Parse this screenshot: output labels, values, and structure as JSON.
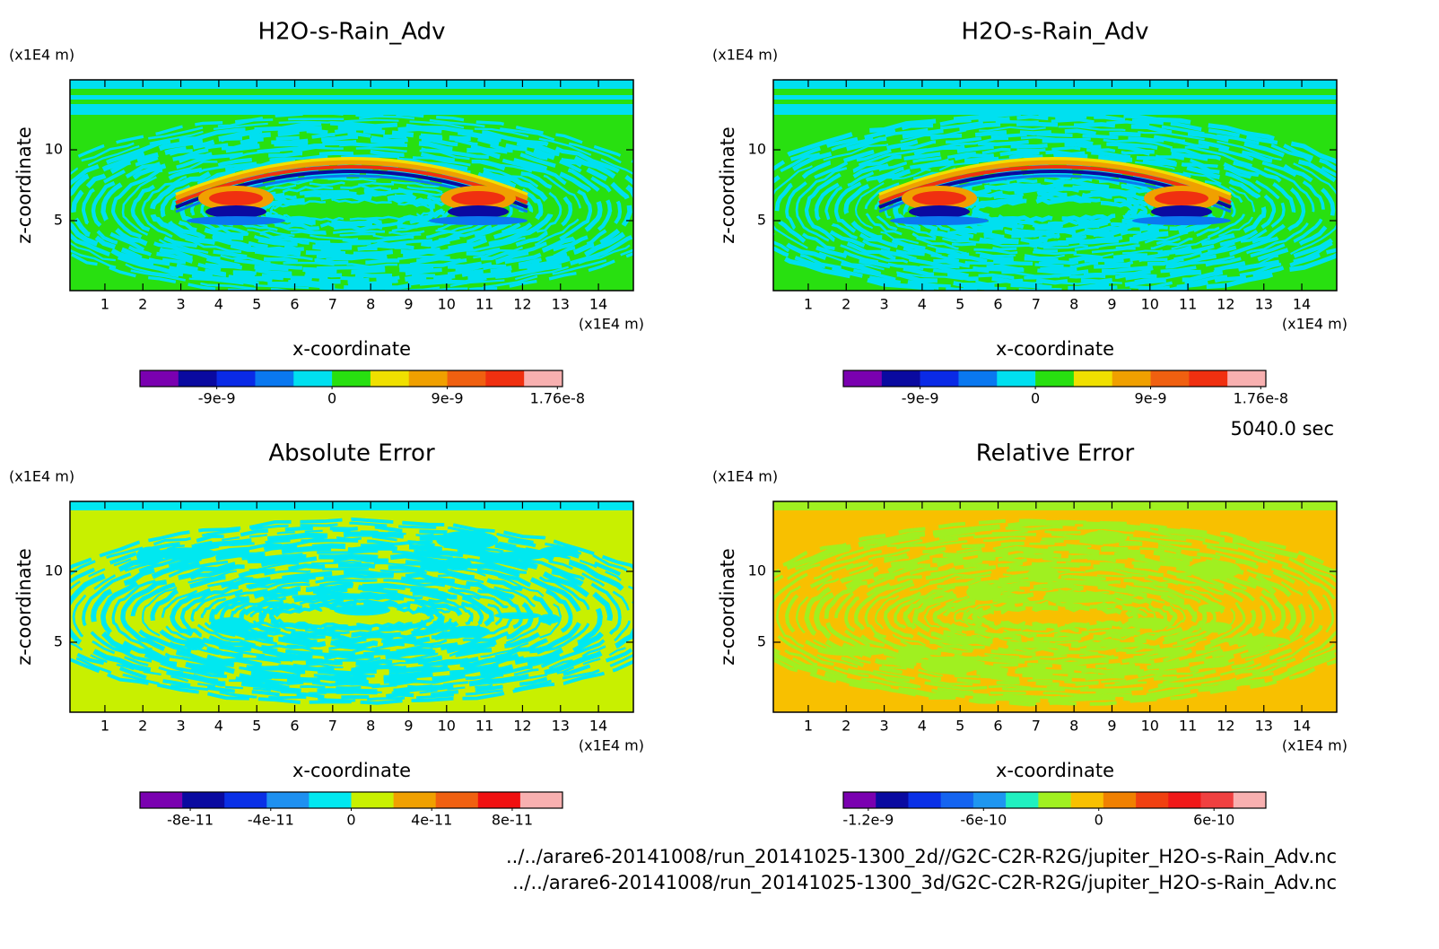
{
  "chart_data": [
    {
      "type": "contour",
      "title": "H2O-s-Rain_Adv",
      "xlabel": "x-coordinate",
      "ylabel": "z-coordinate",
      "xunit": "(x1E4 m)",
      "yunit": "(x1E4 m)",
      "xlim": [
        0.08,
        14.92
      ],
      "ylim": [
        0.06,
        14.94
      ],
      "xticks": [
        1,
        2,
        3,
        4,
        5,
        6,
        7,
        8,
        9,
        10,
        11,
        12,
        13,
        14
      ],
      "yticks": [
        5,
        10
      ],
      "colorbar": {
        "colors": [
          "#7a00b0",
          "#0a0aa0",
          "#0a2ae6",
          "#0a78f0",
          "#00e0f0",
          "#28e010",
          "#f0e000",
          "#f0a000",
          "#f06010",
          "#f03010",
          "#f8b0b0"
        ],
        "clim": [
          -1.5e-08,
          1.8e-08
        ],
        "ticks": [
          -9e-09,
          0,
          9e-09,
          1.76e-08
        ]
      }
    },
    {
      "type": "contour",
      "title": "H2O-s-Rain_Adv",
      "xlabel": "x-coordinate",
      "ylabel": "z-coordinate",
      "xunit": "(x1E4 m)",
      "yunit": "(x1E4 m)",
      "xlim": [
        0.08,
        14.92
      ],
      "ylim": [
        0.06,
        14.94
      ],
      "xticks": [
        1,
        2,
        3,
        4,
        5,
        6,
        7,
        8,
        9,
        10,
        11,
        12,
        13,
        14
      ],
      "yticks": [
        5,
        10
      ],
      "colorbar": {
        "colors": [
          "#7a00b0",
          "#0a0aa0",
          "#0a2ae6",
          "#0a78f0",
          "#00e0f0",
          "#28e010",
          "#f0e000",
          "#f0a000",
          "#f06010",
          "#f03010",
          "#f8b0b0"
        ],
        "clim": [
          -1.5e-08,
          1.8e-08
        ],
        "ticks": [
          -9e-09,
          0,
          9e-09,
          1.76e-08
        ]
      }
    },
    {
      "type": "contour",
      "title": "Absolute Error",
      "xlabel": "x-coordinate",
      "ylabel": "z-coordinate",
      "xunit": "(x1E4 m)",
      "yunit": "(x1E4 m)",
      "xlim": [
        0.08,
        14.92
      ],
      "ylim": [
        0.06,
        14.94
      ],
      "xticks": [
        1,
        2,
        3,
        4,
        5,
        6,
        7,
        8,
        9,
        10,
        11,
        12,
        13,
        14
      ],
      "yticks": [
        5,
        10
      ],
      "colorbar": {
        "colors": [
          "#7a00b0",
          "#0a0aa0",
          "#0a30e6",
          "#1e90f0",
          "#00e8f0",
          "#c8f000",
          "#f0a000",
          "#f06010",
          "#f01010",
          "#f8b0b0"
        ],
        "clim": [
          -1.05e-10,
          1.05e-10
        ],
        "ticks": [
          -8e-11,
          -4e-11,
          0,
          4e-11,
          8e-11
        ]
      }
    },
    {
      "type": "contour",
      "title": "Relative Error",
      "xlabel": "x-coordinate",
      "ylabel": "z-coordinate",
      "xunit": "(x1E4 m)",
      "yunit": "(x1E4 m)",
      "xlim": [
        0.08,
        14.92
      ],
      "ylim": [
        0.06,
        14.94
      ],
      "xticks": [
        1,
        2,
        3,
        4,
        5,
        6,
        7,
        8,
        9,
        10,
        11,
        12,
        13,
        14
      ],
      "yticks": [
        5,
        10
      ],
      "colorbar": {
        "colors": [
          "#7a00b0",
          "#0a0aa0",
          "#0a30e6",
          "#1464f0",
          "#1e96f0",
          "#20f0c0",
          "#a0f020",
          "#f8c000",
          "#f08000",
          "#f04010",
          "#f01818",
          "#f04040",
          "#f8b0b0"
        ],
        "clim": [
          -1.33e-09,
          8.7e-10
        ],
        "ticks": [
          -1.2e-09,
          -6e-10,
          0,
          6e-10
        ]
      }
    }
  ],
  "time": "5040.0 sec",
  "files": [
    "../../arare6-20141008/run_20141025-1300_2d//G2C-C2R-R2G/jupiter_H2O-s-Rain_Adv.nc",
    "../../arare6-20141008/run_20141025-1300_3d/G2C-C2R-R2G/jupiter_H2O-s-Rain_Adv.nc"
  ]
}
